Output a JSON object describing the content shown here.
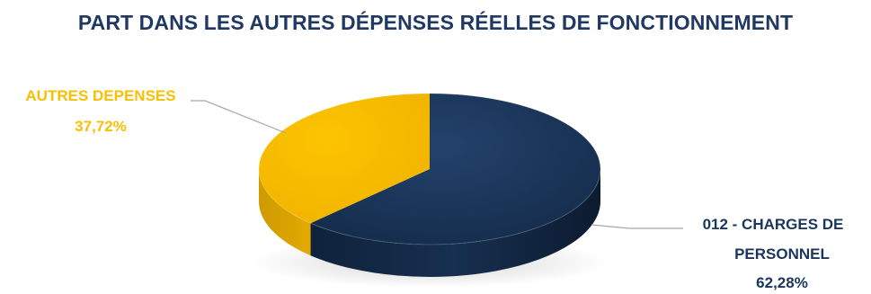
{
  "title": "PART DANS LES AUTRES DÉPENSES RÉELLES DE FONCTIONNEMENT",
  "colors": {
    "title": "#1F3864",
    "personnel": "#1B365D",
    "autres": "#F9BF00",
    "leader": "#A6A6A6"
  },
  "chart_data": {
    "type": "pie",
    "style": "3d",
    "slices": [
      {
        "label_lines": [
          "012 - CHARGES DE",
          "PERSONNEL"
        ],
        "value": 62.28,
        "value_text": "62,28%",
        "color": "#1B365D"
      },
      {
        "label_lines": [
          "AUTRES DEPENSES"
        ],
        "value": 37.72,
        "value_text": "37,72%",
        "color": "#F9BF00"
      }
    ]
  }
}
